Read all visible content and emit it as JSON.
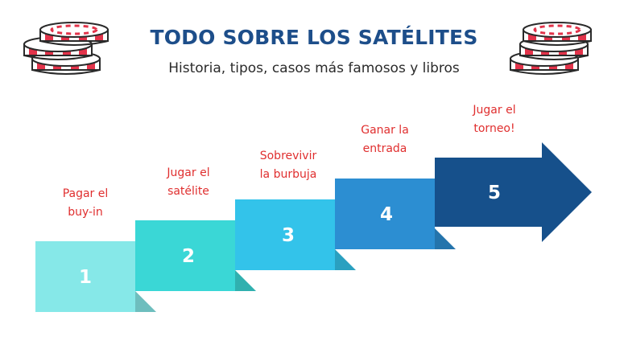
{
  "header": {
    "title": "TODO SOBRE LOS SATÉLITES",
    "subtitle": "Historia, tipos, casos más famosos y libros"
  },
  "decorations": {
    "left_icon": "poker-chips-stack-icon",
    "right_icon": "poker-chips-stack-icon"
  },
  "steps": [
    {
      "number": "1",
      "label_line1": "Pagar el",
      "label_line2": "buy-in",
      "color": "#86e8e8"
    },
    {
      "number": "2",
      "label_line1": "Jugar el",
      "label_line2": "satélite",
      "color": "#3ad7d6"
    },
    {
      "number": "3",
      "label_line1": "Sobrevivir",
      "label_line2": "la burbuja",
      "color": "#33c3ea"
    },
    {
      "number": "4",
      "label_line1": "Ganar la",
      "label_line2": "entrada",
      "color": "#2c8ed2"
    },
    {
      "number": "5",
      "label_line1": "Jugar el",
      "label_line2": "torneo!",
      "color": "#16508b"
    }
  ],
  "colors": {
    "title": "#1d4e8a",
    "labels": "#e02f2f",
    "chip_red": "#e2334a"
  }
}
